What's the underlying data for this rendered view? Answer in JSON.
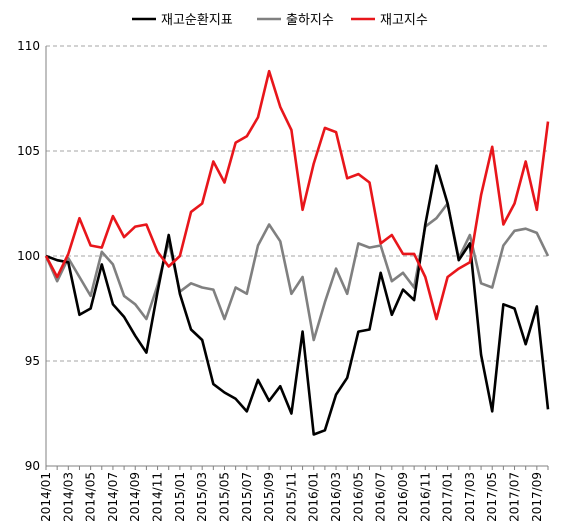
{
  "chart_data": {
    "type": "line",
    "ylim": [
      90,
      110
    ],
    "yticks": [
      "90",
      "95",
      "100",
      "105",
      "110"
    ],
    "x": [
      "2014/01",
      "2014/02",
      "2014/03",
      "2014/04",
      "2014/05",
      "2014/06",
      "2014/07",
      "2014/08",
      "2014/09",
      "2014/10",
      "2014/11",
      "2014/12",
      "2015/01",
      "2015/02",
      "2015/03",
      "2015/04",
      "2015/05",
      "2015/06",
      "2015/07",
      "2015/08",
      "2015/09",
      "2015/10",
      "2015/11",
      "2015/12",
      "2016/01",
      "2016/02",
      "2016/03",
      "2016/04",
      "2016/05",
      "2016/06",
      "2016/07",
      "2016/08",
      "2016/09",
      "2016/10",
      "2016/11",
      "2016/12",
      "2017/01",
      "2017/02",
      "2017/03",
      "2017/04",
      "2017/05",
      "2017/06",
      "2017/07",
      "2017/08",
      "2017/09",
      "2017/10"
    ],
    "xtick_labels": [
      "2014/01",
      "2014/03",
      "2014/05",
      "2014/07",
      "2014/09",
      "2014/11",
      "2015/01",
      "2015/03",
      "2015/05",
      "2015/07",
      "2015/09",
      "2015/11",
      "2016/01",
      "2016/03",
      "2016/05",
      "2016/07",
      "2016/09",
      "2016/11",
      "2017/01",
      "2017/03",
      "2017/05",
      "2017/07",
      "2017/09"
    ],
    "grid": "horizontal",
    "legend_position": "top",
    "series": [
      {
        "name": "재고순환지표",
        "color": "#000000",
        "values": [
          100.0,
          99.8,
          99.7,
          97.2,
          97.5,
          99.6,
          97.7,
          97.1,
          96.2,
          95.4,
          98.3,
          101.0,
          98.2,
          96.5,
          96.0,
          93.9,
          93.5,
          93.2,
          92.6,
          94.1,
          93.1,
          93.8,
          92.5,
          96.4,
          91.5,
          91.7,
          93.4,
          94.2,
          96.4,
          96.5,
          99.2,
          97.2,
          98.4,
          97.9,
          101.5,
          104.3,
          102.5,
          99.8,
          100.6,
          95.3,
          92.6,
          97.7,
          97.5,
          95.8,
          97.6,
          92.7
        ]
      },
      {
        "name": "출하지수",
        "color": "#808080",
        "values": [
          100.0,
          98.8,
          99.9,
          99.0,
          98.1,
          100.2,
          99.6,
          98.1,
          97.7,
          97.0,
          98.6,
          100.7,
          98.3,
          98.7,
          98.5,
          98.4,
          97.0,
          98.5,
          98.2,
          100.5,
          101.5,
          100.7,
          98.2,
          99.0,
          96.0,
          97.8,
          99.4,
          98.2,
          100.6,
          100.4,
          100.5,
          98.8,
          99.2,
          98.5,
          101.4,
          101.8,
          102.5,
          99.9,
          101.0,
          98.7,
          98.5,
          100.5,
          101.2,
          101.3,
          101.1,
          100.0
        ]
      },
      {
        "name": "재고지수",
        "color": "#e8161b",
        "values": [
          100.0,
          99.0,
          100.1,
          101.8,
          100.5,
          100.4,
          101.9,
          100.9,
          101.4,
          101.5,
          100.2,
          99.5,
          100.0,
          102.1,
          102.5,
          104.5,
          103.5,
          105.4,
          105.7,
          106.6,
          108.8,
          107.1,
          106.0,
          102.2,
          104.4,
          106.1,
          105.9,
          103.7,
          103.9,
          103.5,
          100.6,
          101.0,
          100.1,
          100.1,
          99.0,
          97.0,
          99.0,
          99.4,
          99.7,
          102.9,
          105.2,
          101.5,
          102.5,
          104.5,
          102.2,
          106.4
        ]
      }
    ]
  }
}
